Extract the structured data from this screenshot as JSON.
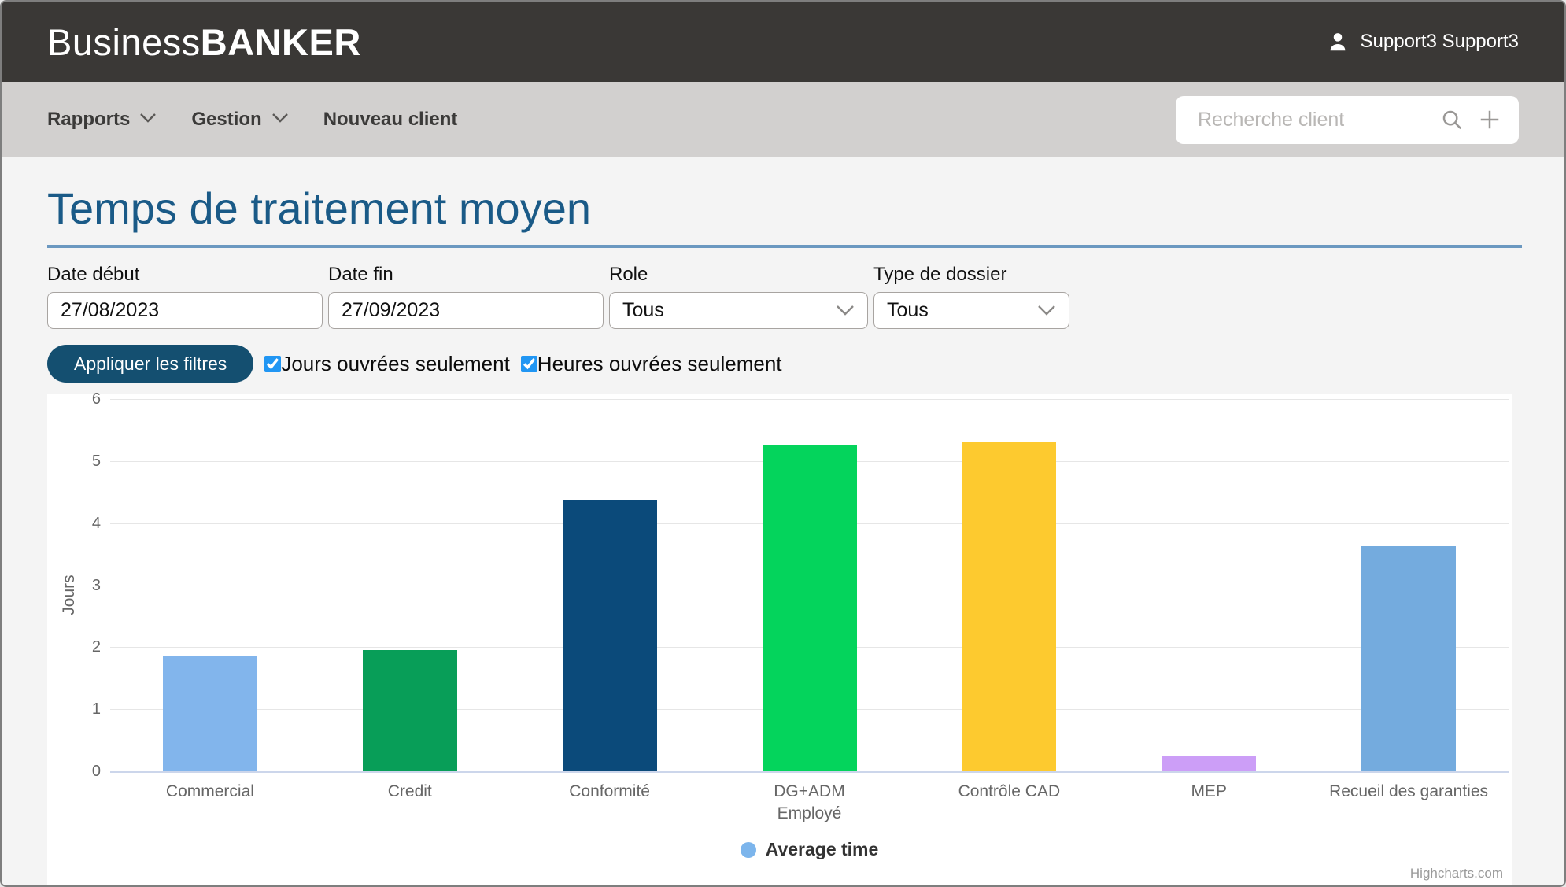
{
  "header": {
    "brand_regular": "Business",
    "brand_bold": "BANKER",
    "user_name": "Support3 Support3"
  },
  "nav": {
    "items": [
      {
        "label": "Rapports",
        "has_dropdown": true
      },
      {
        "label": "Gestion",
        "has_dropdown": true
      },
      {
        "label": "Nouveau client",
        "has_dropdown": false
      }
    ],
    "search_placeholder": "Recherche client"
  },
  "page": {
    "title": "Temps de traitement moyen"
  },
  "filters": {
    "date_start": {
      "label": "Date début",
      "value": "27/08/2023"
    },
    "date_end": {
      "label": "Date fin",
      "value": "27/09/2023"
    },
    "role": {
      "label": "Role",
      "value": "Tous"
    },
    "dossier_type": {
      "label": "Type de dossier",
      "value": "Tous"
    },
    "apply_label": "Appliquer les filtres",
    "checkboxes": [
      {
        "label": "Jours ouvrées seulement",
        "checked": true
      },
      {
        "label": "Heures ouvrées seulement",
        "checked": true
      }
    ]
  },
  "chart_data": {
    "type": "bar",
    "categories": [
      "Commercial",
      "Credit",
      "Conformité",
      "DG+ADM",
      "Contrôle CAD",
      "MEP",
      "Recueil des garanties"
    ],
    "values": [
      1.85,
      1.95,
      4.38,
      5.25,
      5.32,
      0.26,
      3.63
    ],
    "bar_colors": [
      "#82b5ec",
      "#089e58",
      "#0b4a7a",
      "#04d45c",
      "#fdca2f",
      "#cc9ef7",
      "#74abde"
    ],
    "series_name": "Average time",
    "legend_marker_color": "#7cb5ec",
    "title": "",
    "xlabel": "Employé",
    "ylabel": "Jours",
    "ylim": [
      0,
      6
    ],
    "yticks": [
      0,
      1,
      2,
      3,
      4,
      5,
      6
    ],
    "grid": true,
    "legend_position": "bottom-center",
    "credits": "Highcharts.com"
  }
}
